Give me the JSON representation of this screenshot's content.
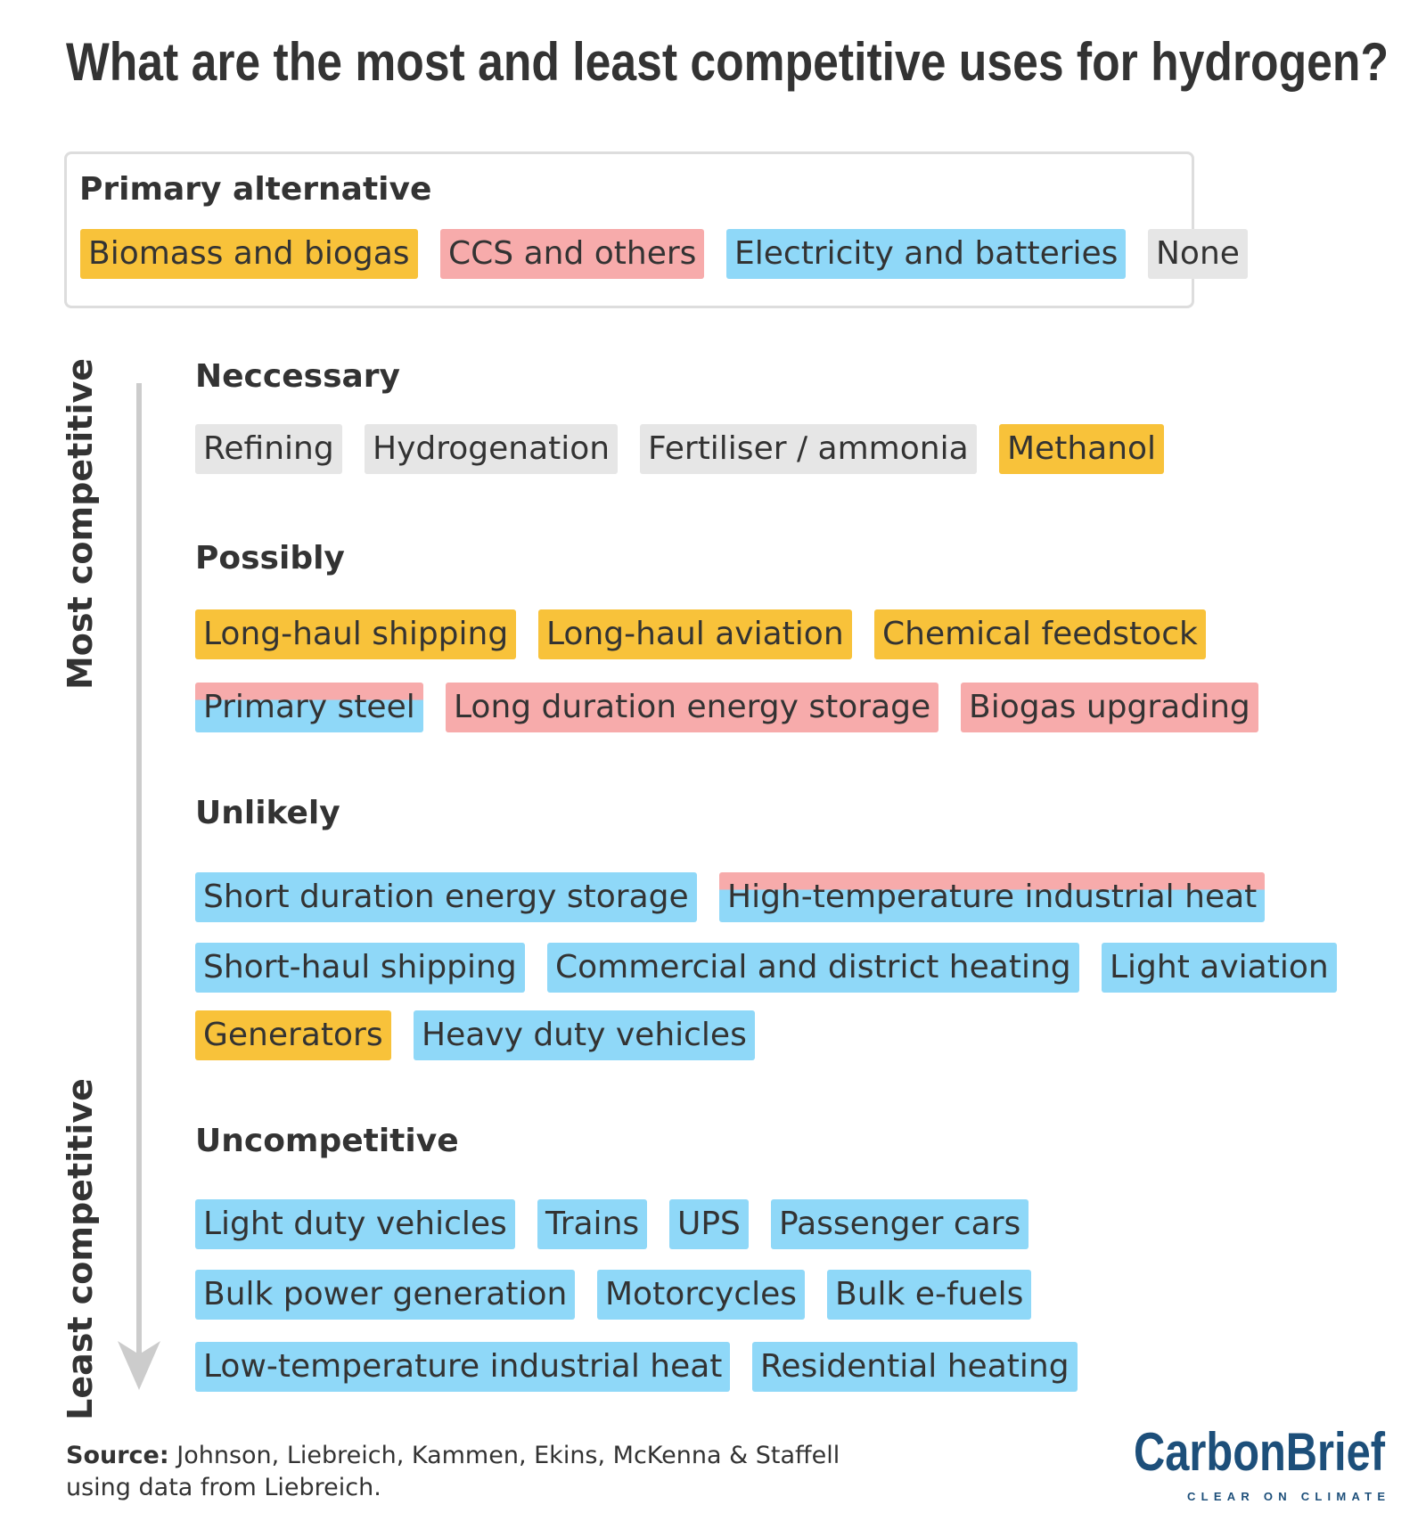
{
  "title": "What are the most and least competitive uses for hydrogen?",
  "legend": {
    "title": "Primary alternative",
    "items": [
      {
        "label": "Biomass and biogas",
        "color": "#f8c23a"
      },
      {
        "label": "CCS and others",
        "color": "#f7abab"
      },
      {
        "label": "Electricity and batteries",
        "color": "#8fd8f8"
      },
      {
        "label": "None",
        "color": "#e6e6e6"
      }
    ]
  },
  "axis": {
    "top": "Most competitive",
    "bottom": "Least competitive"
  },
  "groups": [
    {
      "title": "Neccessary",
      "rows": [
        [
          {
            "label": "Refining",
            "colors": [
              "#e6e6e6"
            ]
          },
          {
            "label": "Hydrogenation",
            "colors": [
              "#e6e6e6"
            ]
          },
          {
            "label": "Fertiliser / ammonia",
            "colors": [
              "#e6e6e6"
            ]
          },
          {
            "label": "Methanol",
            "colors": [
              "#f8c23a"
            ]
          }
        ]
      ]
    },
    {
      "title": "Possibly",
      "rows": [
        [
          {
            "label": "Long-haul shipping",
            "colors": [
              "#f8c23a"
            ]
          },
          {
            "label": "Long-haul aviation",
            "colors": [
              "#f8c23a"
            ]
          },
          {
            "label": "Chemical feedstock",
            "colors": [
              "#f8c23a"
            ]
          }
        ],
        [
          {
            "label": "Primary steel",
            "colors": [
              "#f7abab",
              "#8fd8f8"
            ]
          },
          {
            "label": "Long duration energy storage",
            "colors": [
              "#f7abab"
            ]
          },
          {
            "label": "Biogas upgrading",
            "colors": [
              "#f7abab"
            ]
          }
        ]
      ]
    },
    {
      "title": "Unlikely",
      "rows": [
        [
          {
            "label": "Short duration energy storage",
            "colors": [
              "#8fd8f8"
            ]
          },
          {
            "label": "High-temperature industrial heat",
            "colors": [
              "#f7abab",
              "#8fd8f8"
            ]
          }
        ],
        [
          {
            "label": "Short-haul shipping",
            "colors": [
              "#8fd8f8"
            ]
          },
          {
            "label": "Commercial and district heating",
            "colors": [
              "#8fd8f8"
            ]
          },
          {
            "label": "Light aviation",
            "colors": [
              "#8fd8f8"
            ]
          }
        ],
        [
          {
            "label": "Generators",
            "colors": [
              "#f8c23a"
            ]
          },
          {
            "label": "Heavy duty vehicles",
            "colors": [
              "#8fd8f8"
            ]
          }
        ]
      ]
    },
    {
      "title": "Uncompetitive",
      "rows": [
        [
          {
            "label": "Light duty vehicles",
            "colors": [
              "#8fd8f8"
            ]
          },
          {
            "label": "Trains",
            "colors": [
              "#8fd8f8"
            ]
          },
          {
            "label": "UPS",
            "colors": [
              "#8fd8f8"
            ]
          },
          {
            "label": "Passenger cars",
            "colors": [
              "#8fd8f8"
            ]
          }
        ],
        [
          {
            "label": "Bulk power generation",
            "colors": [
              "#8fd8f8"
            ]
          },
          {
            "label": "Motorcycles",
            "colors": [
              "#8fd8f8"
            ]
          },
          {
            "label": "Bulk e-fuels",
            "colors": [
              "#8fd8f8"
            ]
          }
        ],
        [
          {
            "label": "Low-temperature industrial heat",
            "colors": [
              "#8fd8f8"
            ]
          },
          {
            "label": "Residential heating",
            "colors": [
              "#8fd8f8"
            ]
          }
        ]
      ]
    }
  ],
  "source": {
    "label": "Source:",
    "text": "Johnson, Liebreich, Kammen, Ekins, McKenna & Staffell using data from Liebreich."
  },
  "logo": {
    "name": "CarbonBrief",
    "tagline": "CLEAR ON CLIMATE"
  }
}
